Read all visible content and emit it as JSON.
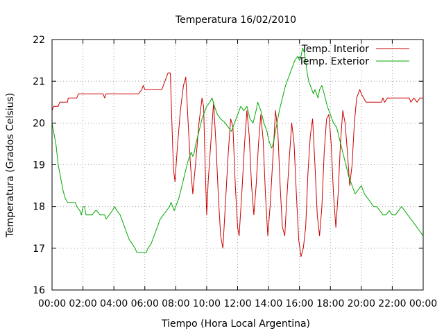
{
  "chart_data": {
    "type": "line",
    "title": "Temperatura 16/02/2010",
    "xlabel": "Tiempo (Hora Local Argentina)",
    "ylabel": "Temperatura (Grados Celsius)",
    "xlim": [
      0,
      24
    ],
    "ylim": [
      16,
      22
    ],
    "x_ticks": [
      "00:00",
      "02:00",
      "04:00",
      "06:00",
      "08:00",
      "10:00",
      "12:00",
      "14:00",
      "16:00",
      "18:00",
      "20:00",
      "22:00",
      "00:00"
    ],
    "y_ticks": [
      "16",
      "17",
      "18",
      "19",
      "20",
      "21",
      "22"
    ],
    "grid": true,
    "legend_position": "top-right",
    "series": [
      {
        "name": "Temp. Interior",
        "color": "#cc0000",
        "points": [
          [
            0.0,
            20.3
          ],
          [
            0.1,
            20.4
          ],
          [
            0.4,
            20.4
          ],
          [
            0.5,
            20.5
          ],
          [
            1.0,
            20.5
          ],
          [
            1.05,
            20.6
          ],
          [
            1.6,
            20.6
          ],
          [
            1.7,
            20.7
          ],
          [
            3.3,
            20.7
          ],
          [
            3.4,
            20.6
          ],
          [
            3.5,
            20.7
          ],
          [
            5.6,
            20.7
          ],
          [
            5.8,
            20.8
          ],
          [
            5.9,
            20.9
          ],
          [
            6.0,
            20.8
          ],
          [
            7.1,
            20.8
          ],
          [
            7.3,
            21.0
          ],
          [
            7.5,
            21.2
          ],
          [
            7.65,
            21.2
          ],
          [
            7.75,
            20.0
          ],
          [
            7.85,
            18.9
          ],
          [
            7.95,
            18.6
          ],
          [
            8.1,
            19.4
          ],
          [
            8.3,
            20.3
          ],
          [
            8.5,
            20.9
          ],
          [
            8.65,
            21.1
          ],
          [
            8.8,
            20.0
          ],
          [
            8.95,
            19.0
          ],
          [
            9.1,
            18.3
          ],
          [
            9.3,
            19.1
          ],
          [
            9.5,
            20.0
          ],
          [
            9.7,
            20.6
          ],
          [
            9.8,
            20.4
          ],
          [
            9.9,
            19.0
          ],
          [
            10.0,
            17.8
          ],
          [
            10.1,
            18.6
          ],
          [
            10.3,
            19.7
          ],
          [
            10.45,
            20.5
          ],
          [
            10.6,
            19.5
          ],
          [
            10.75,
            18.3
          ],
          [
            10.9,
            17.3
          ],
          [
            11.05,
            17.0
          ],
          [
            11.2,
            18.0
          ],
          [
            11.4,
            19.3
          ],
          [
            11.55,
            20.1
          ],
          [
            11.7,
            19.9
          ],
          [
            11.85,
            18.5
          ],
          [
            12.0,
            17.5
          ],
          [
            12.1,
            17.3
          ],
          [
            12.3,
            18.5
          ],
          [
            12.45,
            19.5
          ],
          [
            12.6,
            20.3
          ],
          [
            12.75,
            19.7
          ],
          [
            12.9,
            18.5
          ],
          [
            13.05,
            17.8
          ],
          [
            13.2,
            18.5
          ],
          [
            13.35,
            19.5
          ],
          [
            13.5,
            20.2
          ],
          [
            13.65,
            19.6
          ],
          [
            13.8,
            18.3
          ],
          [
            13.95,
            17.3
          ],
          [
            14.1,
            18.0
          ],
          [
            14.3,
            19.3
          ],
          [
            14.45,
            20.3
          ],
          [
            14.6,
            19.8
          ],
          [
            14.75,
            18.5
          ],
          [
            14.9,
            17.5
          ],
          [
            15.05,
            17.3
          ],
          [
            15.2,
            18.3
          ],
          [
            15.35,
            19.2
          ],
          [
            15.5,
            20.0
          ],
          [
            15.65,
            19.5
          ],
          [
            15.8,
            18.3
          ],
          [
            15.95,
            17.2
          ],
          [
            16.1,
            16.8
          ],
          [
            16.25,
            17.0
          ],
          [
            16.4,
            17.5
          ],
          [
            16.55,
            18.8
          ],
          [
            16.7,
            19.7
          ],
          [
            16.85,
            20.1
          ],
          [
            17.0,
            19.0
          ],
          [
            17.15,
            17.8
          ],
          [
            17.3,
            17.3
          ],
          [
            17.45,
            18.0
          ],
          [
            17.6,
            19.3
          ],
          [
            17.75,
            20.1
          ],
          [
            17.9,
            20.2
          ],
          [
            18.05,
            19.5
          ],
          [
            18.2,
            18.3
          ],
          [
            18.35,
            17.5
          ],
          [
            18.5,
            18.3
          ],
          [
            18.65,
            19.5
          ],
          [
            18.8,
            20.3
          ],
          [
            18.95,
            20.0
          ],
          [
            19.1,
            19.3
          ],
          [
            19.25,
            18.5
          ],
          [
            19.4,
            19.0
          ],
          [
            19.55,
            20.0
          ],
          [
            19.7,
            20.6
          ],
          [
            19.9,
            20.8
          ],
          [
            20.0,
            20.7
          ],
          [
            20.15,
            20.6
          ],
          [
            20.3,
            20.5
          ],
          [
            20.6,
            20.5
          ],
          [
            21.3,
            20.5
          ],
          [
            21.4,
            20.6
          ],
          [
            21.5,
            20.5
          ],
          [
            21.7,
            20.6
          ],
          [
            22.2,
            20.6
          ],
          [
            22.4,
            20.6
          ],
          [
            23.1,
            20.6
          ],
          [
            23.2,
            20.5
          ],
          [
            23.4,
            20.6
          ],
          [
            23.6,
            20.5
          ],
          [
            23.8,
            20.6
          ],
          [
            24.0,
            20.6
          ]
        ]
      },
      {
        "name": "Temp. Exterior",
        "color": "#00aa00",
        "points": [
          [
            0.0,
            20.0
          ],
          [
            0.1,
            19.8
          ],
          [
            0.25,
            19.5
          ],
          [
            0.4,
            19.0
          ],
          [
            0.55,
            18.7
          ],
          [
            0.7,
            18.4
          ],
          [
            0.85,
            18.2
          ],
          [
            1.0,
            18.1
          ],
          [
            1.5,
            18.1
          ],
          [
            1.6,
            18.0
          ],
          [
            1.8,
            17.9
          ],
          [
            1.9,
            17.8
          ],
          [
            2.0,
            18.0
          ],
          [
            2.1,
            18.0
          ],
          [
            2.2,
            17.8
          ],
          [
            2.6,
            17.8
          ],
          [
            2.8,
            17.9
          ],
          [
            2.9,
            17.9
          ],
          [
            3.1,
            17.8
          ],
          [
            3.4,
            17.8
          ],
          [
            3.5,
            17.7
          ],
          [
            3.7,
            17.8
          ],
          [
            3.9,
            17.9
          ],
          [
            4.05,
            18.0
          ],
          [
            4.2,
            17.9
          ],
          [
            4.4,
            17.8
          ],
          [
            4.6,
            17.6
          ],
          [
            4.8,
            17.4
          ],
          [
            5.0,
            17.2
          ],
          [
            5.2,
            17.1
          ],
          [
            5.35,
            17.0
          ],
          [
            5.5,
            16.9
          ],
          [
            6.1,
            16.9
          ],
          [
            6.2,
            17.0
          ],
          [
            6.4,
            17.1
          ],
          [
            6.6,
            17.3
          ],
          [
            6.8,
            17.5
          ],
          [
            7.0,
            17.7
          ],
          [
            7.2,
            17.8
          ],
          [
            7.4,
            17.9
          ],
          [
            7.6,
            18.0
          ],
          [
            7.7,
            18.1
          ],
          [
            7.8,
            18.0
          ],
          [
            7.9,
            17.9
          ],
          [
            8.0,
            18.0
          ],
          [
            8.2,
            18.2
          ],
          [
            8.4,
            18.5
          ],
          [
            8.6,
            18.8
          ],
          [
            8.8,
            19.1
          ],
          [
            9.0,
            19.3
          ],
          [
            9.1,
            19.2
          ],
          [
            9.2,
            19.3
          ],
          [
            9.3,
            19.5
          ],
          [
            9.5,
            19.8
          ],
          [
            9.7,
            20.1
          ],
          [
            9.9,
            20.3
          ],
          [
            10.0,
            20.4
          ],
          [
            10.2,
            20.5
          ],
          [
            10.35,
            20.6
          ],
          [
            10.5,
            20.4
          ],
          [
            10.7,
            20.2
          ],
          [
            10.9,
            20.1
          ],
          [
            11.2,
            20.0
          ],
          [
            11.4,
            19.9
          ],
          [
            11.6,
            19.8
          ],
          [
            11.8,
            20.0
          ],
          [
            12.0,
            20.2
          ],
          [
            12.2,
            20.4
          ],
          [
            12.4,
            20.3
          ],
          [
            12.6,
            20.4
          ],
          [
            12.8,
            20.1
          ],
          [
            13.0,
            20.0
          ],
          [
            13.2,
            20.3
          ],
          [
            13.3,
            20.5
          ],
          [
            13.5,
            20.3
          ],
          [
            13.7,
            20.0
          ],
          [
            13.9,
            19.8
          ],
          [
            14.0,
            19.6
          ],
          [
            14.2,
            19.4
          ],
          [
            14.3,
            19.5
          ],
          [
            14.5,
            19.9
          ],
          [
            14.7,
            20.3
          ],
          [
            14.9,
            20.6
          ],
          [
            15.1,
            20.9
          ],
          [
            15.3,
            21.1
          ],
          [
            15.5,
            21.3
          ],
          [
            15.7,
            21.5
          ],
          [
            15.9,
            21.6
          ],
          [
            16.0,
            21.5
          ],
          [
            16.1,
            21.6
          ],
          [
            16.2,
            21.8
          ],
          [
            16.3,
            21.7
          ],
          [
            16.4,
            21.5
          ],
          [
            16.5,
            21.2
          ],
          [
            16.6,
            21.0
          ],
          [
            16.8,
            20.8
          ],
          [
            16.9,
            20.7
          ],
          [
            17.0,
            20.8
          ],
          [
            17.2,
            20.6
          ],
          [
            17.3,
            20.8
          ],
          [
            17.45,
            20.9
          ],
          [
            17.6,
            20.7
          ],
          [
            17.8,
            20.4
          ],
          [
            18.0,
            20.2
          ],
          [
            18.2,
            20.0
          ],
          [
            18.4,
            19.9
          ],
          [
            18.6,
            19.6
          ],
          [
            18.8,
            19.3
          ],
          [
            19.0,
            19.0
          ],
          [
            19.2,
            18.7
          ],
          [
            19.4,
            18.5
          ],
          [
            19.6,
            18.3
          ],
          [
            19.8,
            18.4
          ],
          [
            20.0,
            18.5
          ],
          [
            20.2,
            18.3
          ],
          [
            20.4,
            18.2
          ],
          [
            20.6,
            18.1
          ],
          [
            20.8,
            18.0
          ],
          [
            21.0,
            18.0
          ],
          [
            21.2,
            17.9
          ],
          [
            21.4,
            17.8
          ],
          [
            21.6,
            17.8
          ],
          [
            21.8,
            17.9
          ],
          [
            22.0,
            17.8
          ],
          [
            22.2,
            17.8
          ],
          [
            22.4,
            17.9
          ],
          [
            22.6,
            18.0
          ],
          [
            22.8,
            17.9
          ],
          [
            23.0,
            17.8
          ],
          [
            23.2,
            17.7
          ],
          [
            23.4,
            17.6
          ],
          [
            23.6,
            17.5
          ],
          [
            23.8,
            17.4
          ],
          [
            24.0,
            17.3
          ]
        ]
      }
    ]
  }
}
